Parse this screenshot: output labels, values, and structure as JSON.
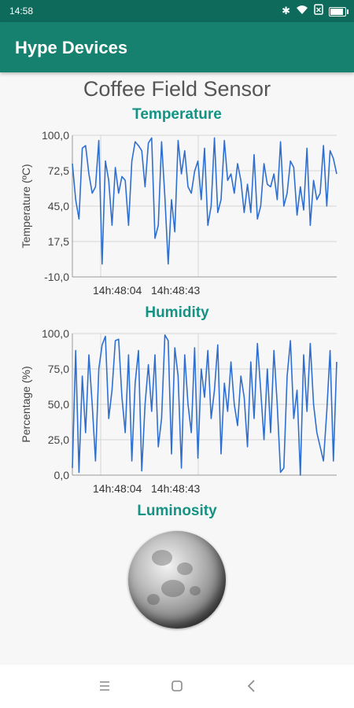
{
  "status_bar": {
    "time": "14:58",
    "icons": [
      "bluetooth-icon",
      "wifi-icon",
      "sim-x-icon",
      "battery-icon"
    ]
  },
  "app_bar": {
    "title": "Hype Devices"
  },
  "device": {
    "name": "Coffee Field Sensor"
  },
  "sections": {
    "temperature": {
      "title": "Temperature"
    },
    "humidity": {
      "title": "Humidity"
    },
    "luminosity": {
      "title": "Luminosity"
    }
  },
  "colors": {
    "status_bar": "#0e6a5b",
    "app_bar": "#16816f",
    "accent": "#149384",
    "line": "#2f6fd0"
  },
  "nav_bar": {
    "icons": [
      "menu-icon",
      "home-square-icon",
      "back-icon"
    ]
  },
  "chart_data": [
    {
      "type": "line",
      "title": "Temperature",
      "ylabel": "Temperature (ºC)",
      "ylim": [
        -10,
        100
      ],
      "yticks": [
        "100,0",
        "72,5",
        "45,0",
        "17,5",
        "-10,0"
      ],
      "xticks": [
        "14h:48:04",
        "14h:48:43"
      ],
      "grid": true,
      "series": [
        {
          "values": [
            78,
            50,
            35,
            90,
            92,
            70,
            55,
            60,
            96,
            0,
            80,
            65,
            30,
            75,
            55,
            68,
            65,
            30,
            80,
            95,
            92,
            88,
            60,
            94,
            98,
            20,
            30,
            95,
            52,
            0,
            50,
            25,
            96,
            70,
            88,
            60,
            55,
            72,
            80,
            50,
            90,
            30,
            45,
            98,
            40,
            50,
            96,
            65,
            70,
            55,
            78,
            65,
            40,
            62,
            40,
            85,
            35,
            45,
            78,
            62,
            60,
            70,
            50,
            95,
            45,
            55,
            80,
            75,
            38,
            60,
            42,
            90,
            30,
            65,
            50,
            55,
            92,
            45,
            88,
            82,
            70
          ]
        }
      ]
    },
    {
      "type": "line",
      "title": "Humidity",
      "ylabel": "Percentage (%)",
      "ylim": [
        0,
        100
      ],
      "yticks": [
        "100,0",
        "75,0",
        "50,0",
        "25,0",
        "0,0"
      ],
      "xticks": [
        "14h:48:04",
        "14h:48:43"
      ],
      "grid": true,
      "series": [
        {
          "values": [
            5,
            88,
            2,
            70,
            30,
            85,
            50,
            10,
            75,
            92,
            98,
            40,
            60,
            95,
            96,
            55,
            30,
            85,
            10,
            65,
            88,
            3,
            50,
            78,
            45,
            85,
            20,
            40,
            99,
            95,
            15,
            90,
            70,
            5,
            85,
            50,
            30,
            90,
            12,
            75,
            55,
            88,
            40,
            60,
            92,
            15,
            65,
            45,
            80,
            50,
            35,
            70,
            55,
            20,
            80,
            40,
            93,
            60,
            25,
            75,
            30,
            88,
            50,
            2,
            5,
            70,
            95,
            40,
            60,
            0,
            85,
            45,
            93,
            50,
            30,
            20,
            10,
            45,
            88,
            10,
            80
          ]
        }
      ]
    }
  ]
}
